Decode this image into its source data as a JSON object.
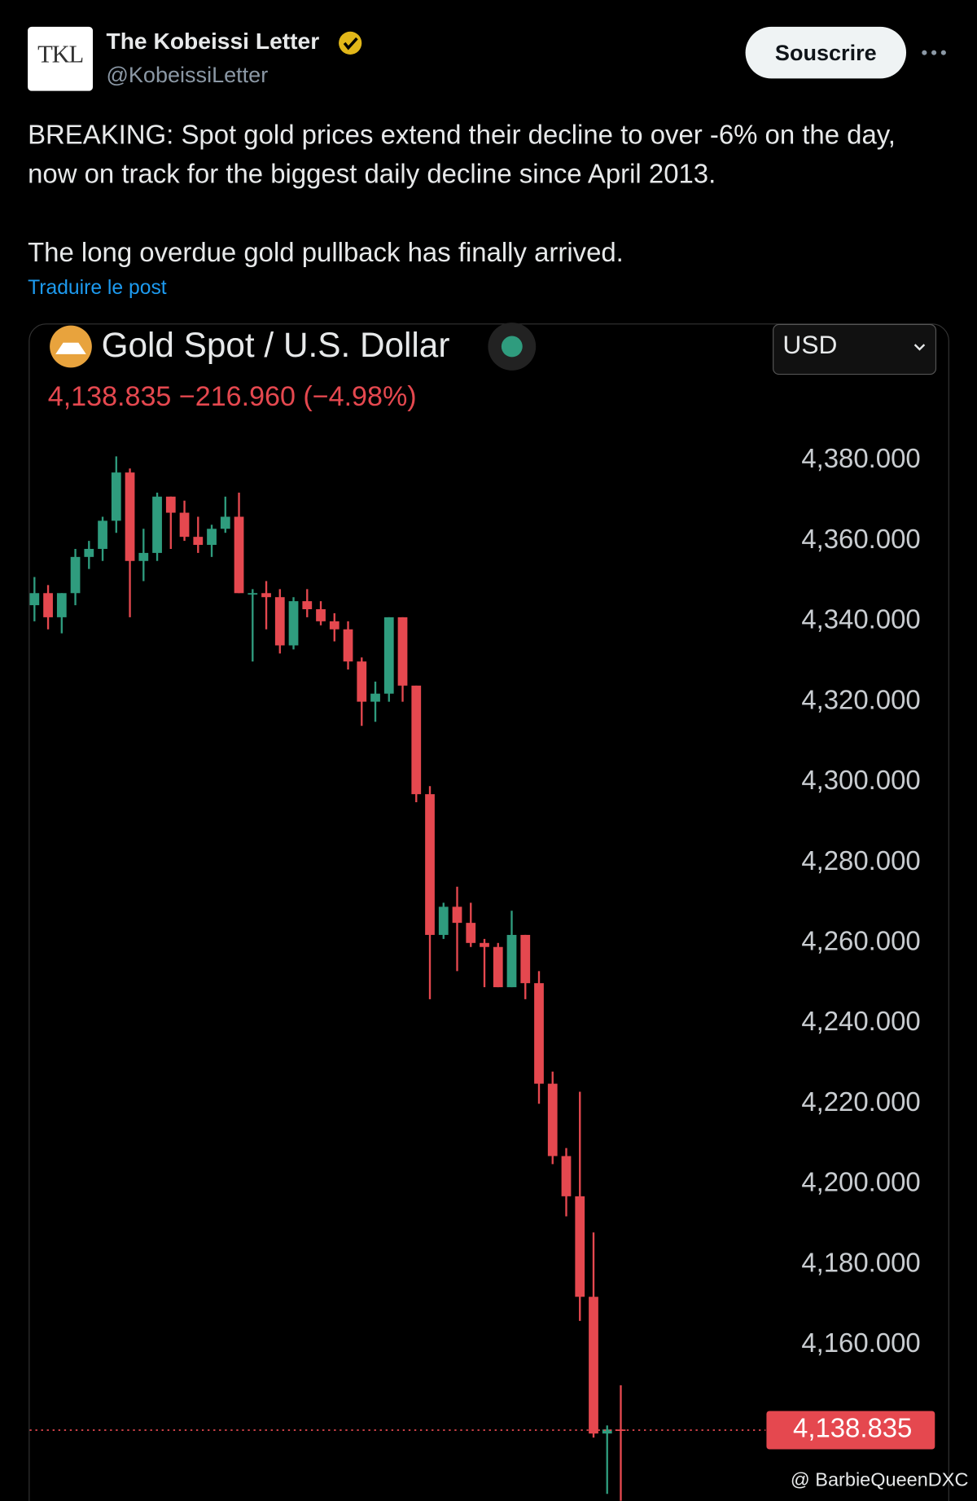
{
  "post": {
    "author": "The Kobeissi Letter",
    "handle": "@KobeissiLetter",
    "avatar_text": "TKL",
    "follow_button": "Souscrire",
    "paragraphs": [
      "BREAKING: Spot gold prices extend their decline to over -6% on the day, now on track for the biggest daily decline since April 2013.",
      "The long overdue gold pullback has finally arrived."
    ],
    "translate": "Traduire le post"
  },
  "chart_data": {
    "type": "candlestick",
    "title": "Gold Spot / U.S. Dollar",
    "quote": "4,138.835 −216.960 (−4.98%)",
    "currency": "USD",
    "watermark": "@ BarbieQueenDXC",
    "up_color": "#2f9c7e",
    "down_color": "#e5484f",
    "ylim": [
      4121,
      4400
    ],
    "yticks": [
      {
        "value": 4160,
        "label": "4,160.000"
      },
      {
        "value": 4180,
        "label": "4,180.000"
      },
      {
        "value": 4200,
        "label": "4,200.000"
      },
      {
        "value": 4220,
        "label": "4,220.000"
      },
      {
        "value": 4240,
        "label": "4,240.000"
      },
      {
        "value": 4260,
        "label": "4,260.000"
      },
      {
        "value": 4280,
        "label": "4,280.000"
      },
      {
        "value": 4300,
        "label": "4,300.000"
      },
      {
        "value": 4320,
        "label": "4,320.000"
      },
      {
        "value": 4340,
        "label": "4,340.000"
      },
      {
        "value": 4360,
        "label": "4,360.000"
      },
      {
        "value": 4380,
        "label": "4,380.000"
      }
    ],
    "last_price": {
      "value": 4138.835,
      "label": "4,138.835"
    },
    "open": [
      4344,
      4347,
      4341,
      4347,
      4356,
      4358,
      4365,
      4377,
      4355,
      4357,
      4371,
      4367,
      4361,
      4359,
      4363,
      4366,
      4347,
      4347,
      4346,
      4334,
      4345,
      4343,
      4340,
      4338,
      4330,
      4320,
      4322,
      4341,
      4324,
      4297,
      4262,
      4269,
      4265,
      4260,
      4259,
      4249,
      4262,
      4250,
      4225,
      4207,
      4197,
      4172,
      4138,
      4139
    ],
    "high": [
      4351,
      4349,
      4347,
      4358,
      4360,
      4366,
      4381,
      4378,
      4363,
      4372,
      4371,
      4370,
      4366,
      4364,
      4371,
      4372,
      4348,
      4350,
      4348,
      4346,
      4348,
      4345,
      4342,
      4340,
      4331,
      4325,
      4341,
      4341,
      4324,
      4299,
      4270,
      4274,
      4270,
      4261,
      4260,
      4268,
      4262,
      4253,
      4228,
      4209,
      4223,
      4188,
      4140,
      4150
    ],
    "low": [
      4340,
      4338,
      4337,
      4344,
      4353,
      4355,
      4362,
      4341,
      4350,
      4355,
      4358,
      4360,
      4357,
      4356,
      4362,
      4347,
      4330,
      4338,
      4332,
      4333,
      4341,
      4339,
      4335,
      4328,
      4314,
      4315,
      4320,
      4320,
      4295,
      4246,
      4261,
      4253,
      4259,
      4249,
      4249,
      4249,
      4246,
      4220,
      4205,
      4192,
      4166,
      4137,
      4123,
      4120
    ],
    "close": [
      4347,
      4341,
      4347,
      4356,
      4358,
      4365,
      4377,
      4355,
      4357,
      4371,
      4367,
      4361,
      4359,
      4363,
      4366,
      4347,
      4347,
      4346,
      4334,
      4345,
      4343,
      4340,
      4338,
      4330,
      4320,
      4322,
      4341,
      4324,
      4297,
      4262,
      4269,
      4265,
      4260,
      4259,
      4249,
      4262,
      4250,
      4225,
      4207,
      4197,
      4172,
      4138,
      4139,
      4138.835
    ]
  }
}
